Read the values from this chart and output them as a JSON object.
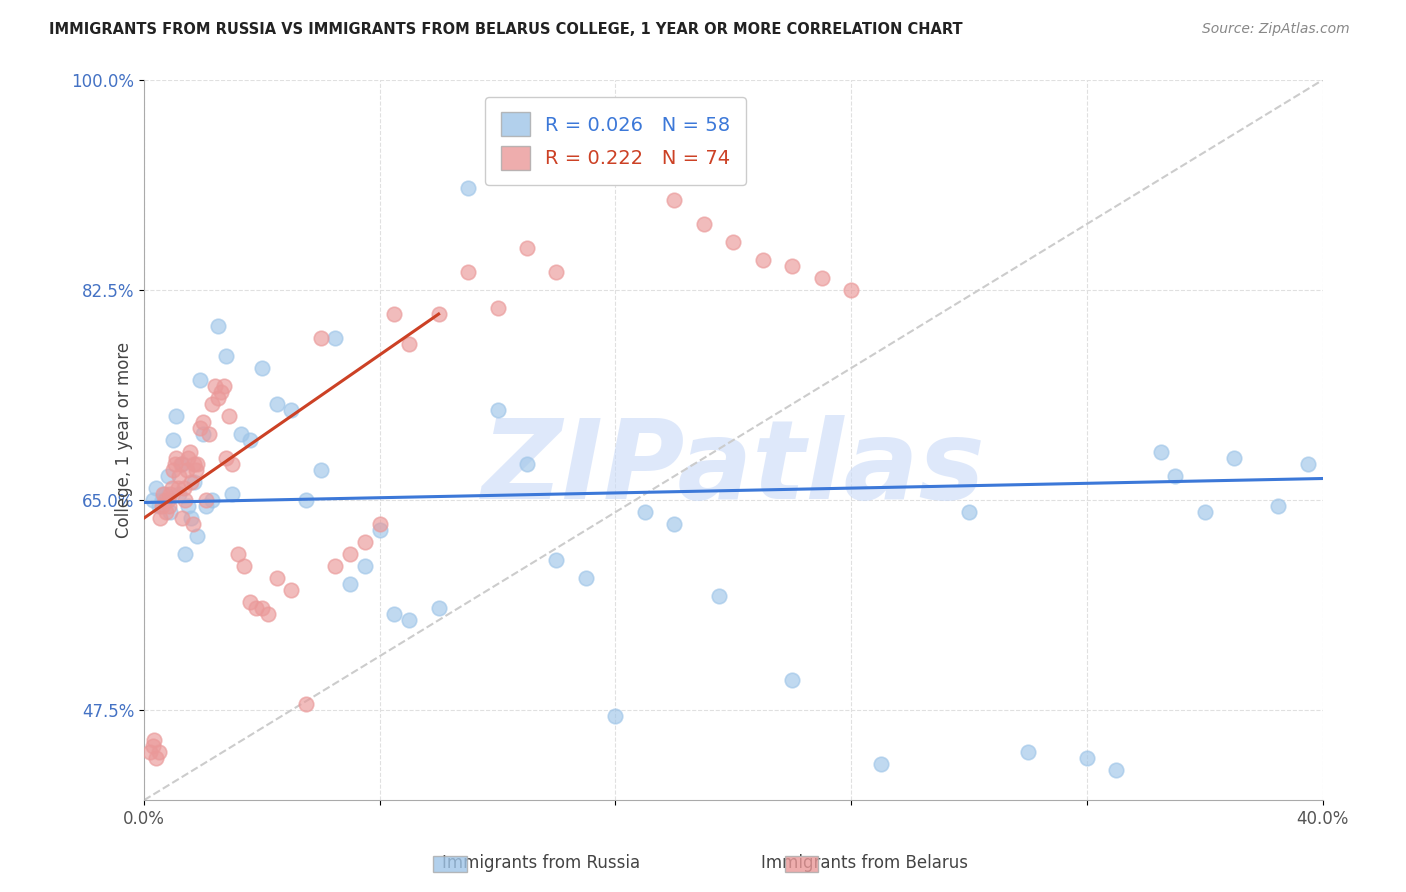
{
  "title": "IMMIGRANTS FROM RUSSIA VS IMMIGRANTS FROM BELARUS COLLEGE, 1 YEAR OR MORE CORRELATION CHART",
  "source": "Source: ZipAtlas.com",
  "xmin": 0.0,
  "xmax": 40.0,
  "ymin": 40.0,
  "ymax": 100.0,
  "russia_color": "#9fc5e8",
  "belarus_color": "#ea9999",
  "russia_R": 0.026,
  "russia_N": 58,
  "belarus_R": 0.222,
  "belarus_N": 74,
  "russia_line_color": "#3c78d8",
  "belarus_line_color": "#cc4125",
  "diagonal_color": "#cccccc",
  "watermark": "ZIPatlas",
  "watermark_color": "#c9daf8",
  "ytick_color": "#4472c4",
  "ytick_vals": [
    47.5,
    65.0,
    82.5,
    100.0
  ],
  "ytick_labels": [
    "47.5%",
    "65.0%",
    "82.5%",
    "100.0%"
  ],
  "xtick_vals": [
    0.0,
    40.0
  ],
  "xtick_labels": [
    "0.0%",
    "40.0%"
  ],
  "russia_x": [
    0.3,
    0.4,
    0.5,
    0.6,
    0.7,
    0.8,
    0.9,
    1.0,
    1.1,
    1.2,
    1.3,
    1.4,
    1.5,
    1.6,
    1.7,
    1.8,
    1.9,
    2.0,
    2.1,
    2.3,
    2.5,
    2.8,
    3.0,
    3.3,
    3.6,
    4.0,
    4.5,
    5.0,
    5.5,
    6.0,
    6.5,
    7.0,
    7.5,
    8.0,
    8.5,
    9.0,
    10.0,
    11.0,
    12.0,
    13.0,
    14.0,
    15.0,
    16.0,
    17.0,
    18.0,
    19.5,
    22.0,
    25.0,
    28.0,
    30.0,
    32.0,
    33.0,
    34.5,
    35.0,
    36.0,
    37.0,
    38.5,
    39.5
  ],
  "russia_y": [
    65.0,
    66.0,
    64.5,
    65.0,
    65.5,
    67.0,
    64.0,
    70.0,
    72.0,
    65.5,
    68.0,
    60.5,
    64.5,
    63.5,
    66.5,
    62.0,
    75.0,
    70.5,
    64.5,
    65.0,
    79.5,
    77.0,
    65.5,
    70.5,
    70.0,
    76.0,
    73.0,
    72.5,
    65.0,
    67.5,
    78.5,
    58.0,
    59.5,
    62.5,
    55.5,
    55.0,
    56.0,
    91.0,
    72.5,
    68.0,
    60.0,
    58.5,
    47.0,
    64.0,
    63.0,
    57.0,
    50.0,
    43.0,
    64.0,
    44.0,
    43.5,
    42.5,
    69.0,
    67.0,
    64.0,
    68.5,
    64.5,
    68.0
  ],
  "belarus_x": [
    0.2,
    0.3,
    0.35,
    0.4,
    0.5,
    0.55,
    0.6,
    0.65,
    0.7,
    0.75,
    0.8,
    0.85,
    0.9,
    0.95,
    1.0,
    1.05,
    1.1,
    1.15,
    1.2,
    1.25,
    1.3,
    1.35,
    1.4,
    1.45,
    1.5,
    1.55,
    1.6,
    1.65,
    1.7,
    1.75,
    1.8,
    1.9,
    2.0,
    2.1,
    2.2,
    2.3,
    2.4,
    2.5,
    2.6,
    2.7,
    2.8,
    2.9,
    3.0,
    3.2,
    3.4,
    3.6,
    3.8,
    4.0,
    4.2,
    4.5,
    5.0,
    5.5,
    6.0,
    6.5,
    7.0,
    7.5,
    8.0,
    8.5,
    9.0,
    10.0,
    11.0,
    12.0,
    13.0,
    14.0,
    15.0,
    16.0,
    17.0,
    18.0,
    19.0,
    20.0,
    21.0,
    22.0,
    23.0,
    24.0
  ],
  "belarus_y": [
    44.0,
    44.5,
    45.0,
    43.5,
    44.0,
    63.5,
    64.5,
    65.5,
    65.0,
    64.0,
    65.0,
    64.5,
    65.5,
    66.0,
    67.5,
    68.0,
    68.5,
    66.0,
    67.0,
    68.0,
    63.5,
    66.0,
    65.0,
    67.5,
    68.5,
    69.0,
    66.5,
    63.0,
    68.0,
    67.5,
    68.0,
    71.0,
    71.5,
    65.0,
    70.5,
    73.0,
    74.5,
    73.5,
    74.0,
    74.5,
    68.5,
    72.0,
    68.0,
    60.5,
    59.5,
    56.5,
    56.0,
    56.0,
    55.5,
    58.5,
    57.5,
    48.0,
    78.5,
    59.5,
    60.5,
    61.5,
    63.0,
    80.5,
    78.0,
    80.5,
    84.0,
    81.0,
    86.0,
    84.0,
    96.5,
    94.0,
    92.0,
    90.0,
    88.0,
    86.5,
    85.0,
    84.5,
    83.5,
    82.5
  ],
  "russia_line_x0": 0.0,
  "russia_line_y0": 64.8,
  "russia_line_x1": 40.0,
  "russia_line_y1": 66.8,
  "belarus_line_x0": 0.0,
  "belarus_line_y0": 63.5,
  "belarus_line_x1": 10.0,
  "belarus_line_y1": 80.5
}
